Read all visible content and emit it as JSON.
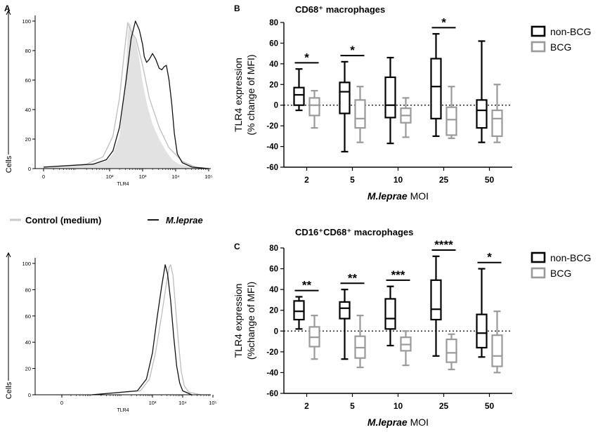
{
  "panel_labels": {
    "a": "A",
    "b": "B",
    "c": "C"
  },
  "histogram_legend": {
    "control": {
      "label": "Control (medium)",
      "color": "#c8c8c8"
    },
    "mleprae": {
      "label": "M.leprae",
      "color": "#1a1a1a"
    }
  },
  "colors": {
    "non_bcg": "#000000",
    "bcg": "#9a9a9a",
    "fill_gray": "#e2e2e2"
  },
  "chart_data": [
    {
      "id": "A_top",
      "type": "histogram",
      "ylabel": "Cells",
      "xlabel": "TLR4",
      "yticks": [
        "0",
        "20",
        "40",
        "60",
        "80",
        "100"
      ],
      "ylim": [
        0,
        100
      ],
      "xticks": [
        "0",
        "10²",
        "10³",
        "10⁴",
        "10⁵"
      ],
      "x_decades": [
        0,
        2,
        3,
        4,
        5
      ],
      "series": [
        {
          "name": "Control (medium)",
          "style": "filled",
          "points": [
            [
              0.0,
              1
            ],
            [
              1.0,
              2
            ],
            [
              1.5,
              3
            ],
            [
              1.9,
              5
            ],
            [
              2.1,
              10
            ],
            [
              2.3,
              22
            ],
            [
              2.4,
              42
            ],
            [
              2.5,
              68
            ],
            [
              2.55,
              92
            ],
            [
              2.6,
              99
            ],
            [
              2.65,
              97
            ],
            [
              2.7,
              92
            ],
            [
              2.8,
              86
            ],
            [
              2.9,
              74
            ],
            [
              3.0,
              58
            ],
            [
              3.15,
              42
            ],
            [
              3.3,
              30
            ],
            [
              3.5,
              20
            ],
            [
              3.7,
              12
            ],
            [
              3.9,
              6
            ],
            [
              4.1,
              3
            ],
            [
              4.5,
              1
            ],
            [
              5.0,
              0
            ]
          ]
        },
        {
          "name": "Control outline",
          "style": "gray-line",
          "points": [
            [
              0.0,
              1
            ],
            [
              1.3,
              3
            ],
            [
              1.8,
              8
            ],
            [
              2.1,
              22
            ],
            [
              2.3,
              48
            ],
            [
              2.45,
              80
            ],
            [
              2.55,
              99
            ],
            [
              2.65,
              93
            ],
            [
              2.8,
              88
            ],
            [
              3.0,
              70
            ],
            [
              3.2,
              48
            ],
            [
              3.5,
              28
            ],
            [
              3.8,
              14
            ],
            [
              4.2,
              5
            ],
            [
              4.6,
              1
            ],
            [
              5.0,
              0
            ]
          ]
        },
        {
          "name": "M.leprae",
          "style": "black-line",
          "points": [
            [
              0.0,
              1
            ],
            [
              1.5,
              3
            ],
            [
              1.9,
              6
            ],
            [
              2.1,
              12
            ],
            [
              2.3,
              28
            ],
            [
              2.5,
              60
            ],
            [
              2.65,
              88
            ],
            [
              2.78,
              100
            ],
            [
              2.9,
              94
            ],
            [
              3.0,
              84
            ],
            [
              3.05,
              76
            ],
            [
              3.12,
              72
            ],
            [
              3.2,
              74
            ],
            [
              3.3,
              78
            ],
            [
              3.4,
              74
            ],
            [
              3.5,
              68
            ],
            [
              3.58,
              67
            ],
            [
              3.65,
              69
            ],
            [
              3.72,
              70
            ],
            [
              3.8,
              60
            ],
            [
              3.88,
              44
            ],
            [
              3.96,
              24
            ],
            [
              4.05,
              10
            ],
            [
              4.2,
              4
            ],
            [
              4.5,
              1
            ],
            [
              5.0,
              0
            ]
          ]
        }
      ]
    },
    {
      "id": "A_bottom",
      "type": "histogram",
      "ylabel": "Cells",
      "xlabel": "TLR4",
      "yticks": [
        "0",
        "20",
        "40",
        "60",
        "80",
        "100"
      ],
      "ylim": [
        0,
        100
      ],
      "xticks": [
        "0",
        "10³",
        "10⁴",
        "10⁵"
      ],
      "x_decades": [
        0,
        3,
        4,
        5
      ],
      "series": [
        {
          "name": "Control (medium)",
          "style": "gray-line",
          "points": [
            [
              1.0,
              0
            ],
            [
              2.6,
              3
            ],
            [
              2.9,
              12
            ],
            [
              3.1,
              32
            ],
            [
              3.3,
              60
            ],
            [
              3.45,
              83
            ],
            [
              3.55,
              97
            ],
            [
              3.6,
              99
            ],
            [
              3.68,
              91
            ],
            [
              3.75,
              70
            ],
            [
              3.85,
              42
            ],
            [
              3.95,
              18
            ],
            [
              4.05,
              7
            ],
            [
              4.2,
              2
            ],
            [
              4.6,
              0
            ]
          ]
        },
        {
          "name": "M.leprae",
          "style": "black-line",
          "points": [
            [
              1.0,
              0
            ],
            [
              2.5,
              3
            ],
            [
              2.8,
              12
            ],
            [
              3.0,
              32
            ],
            [
              3.15,
              58
            ],
            [
              3.3,
              82
            ],
            [
              3.42,
              99
            ],
            [
              3.5,
              92
            ],
            [
              3.6,
              72
            ],
            [
              3.7,
              45
            ],
            [
              3.8,
              22
            ],
            [
              3.9,
              9
            ],
            [
              4.0,
              3
            ],
            [
              4.3,
              0
            ]
          ]
        }
      ]
    },
    {
      "id": "B",
      "type": "boxplot",
      "title": "CD68⁺ macrophages",
      "ylabel_line1": "TLR4 expression",
      "ylabel_line2": "(% change of MFI)",
      "xlabel_italic": "M.leprae",
      "xlabel_rest": " MOI",
      "categories": [
        "2",
        "5",
        "10",
        "25",
        "50"
      ],
      "yticks": [
        "80",
        "60",
        "40",
        "20",
        "0",
        "-20",
        "-40",
        "-60"
      ],
      "ylim": [
        -60,
        80
      ],
      "legend": [
        "non-BCG",
        "BCG"
      ],
      "series": [
        {
          "name": "non-BCG",
          "boxes": [
            {
              "min": -5,
              "q1": 0,
              "median": 10,
              "q3": 17,
              "max": 35
            },
            {
              "min": -45,
              "q1": -8,
              "median": 13,
              "q3": 22,
              "max": 42
            },
            {
              "min": -37,
              "q1": -12,
              "median": 0,
              "q3": 27,
              "max": 46
            },
            {
              "min": -30,
              "q1": -13,
              "median": 18,
              "q3": 45,
              "max": 69
            },
            {
              "min": -36,
              "q1": -22,
              "median": -5,
              "q3": 5,
              "max": 62
            }
          ]
        },
        {
          "name": "BCG",
          "boxes": [
            {
              "min": -22,
              "q1": -10,
              "median": 0,
              "q3": 7,
              "max": 14
            },
            {
              "min": -36,
              "q1": -22,
              "median": -13,
              "q3": 5,
              "max": 18
            },
            {
              "min": -31,
              "q1": -17,
              "median": -10,
              "q3": -3,
              "max": 7
            },
            {
              "min": -32,
              "q1": -29,
              "median": -14,
              "q3": -2,
              "max": 18
            },
            {
              "min": -36,
              "q1": -30,
              "median": -13,
              "q3": -5,
              "max": 20
            }
          ]
        }
      ],
      "significance": [
        "*",
        "*",
        "",
        "*",
        ""
      ]
    },
    {
      "id": "C",
      "type": "boxplot",
      "title": "CD16⁺CD68⁺ macrophages",
      "ylabel_line1": "TLR4 expression",
      "ylabel_line2": "(%change of MFI)",
      "xlabel_italic": "M.leprae",
      "xlabel_rest": " MOI",
      "categories": [
        "2",
        "5",
        "10",
        "25",
        "50"
      ],
      "yticks": [
        "80",
        "60",
        "40",
        "20",
        "0",
        "-20",
        "-40",
        "-60"
      ],
      "ylim": [
        -60,
        80
      ],
      "legend": [
        "non-BCG",
        "BCG"
      ],
      "series": [
        {
          "name": "non-BCG",
          "boxes": [
            {
              "min": 2,
              "q1": 11,
              "median": 19,
              "q3": 29,
              "max": 33
            },
            {
              "min": -27,
              "q1": 12,
              "median": 22,
              "q3": 28,
              "max": 40
            },
            {
              "min": -14,
              "q1": 2,
              "median": 12,
              "q3": 31,
              "max": 43
            },
            {
              "min": -24,
              "q1": 11,
              "median": 21,
              "q3": 49,
              "max": 72
            },
            {
              "min": -25,
              "q1": -16,
              "median": -2,
              "q3": 16,
              "max": 60
            }
          ]
        },
        {
          "name": "BCG",
          "boxes": [
            {
              "min": -27,
              "q1": -15,
              "median": -6,
              "q3": 4,
              "max": 15
            },
            {
              "min": -35,
              "q1": -26,
              "median": -16,
              "q3": -5,
              "max": 15
            },
            {
              "min": -33,
              "q1": -19,
              "median": -13,
              "q3": -6,
              "max": 0
            },
            {
              "min": -37,
              "q1": -30,
              "median": -21,
              "q3": -8,
              "max": -3
            },
            {
              "min": -40,
              "q1": -34,
              "median": -24,
              "q3": -4,
              "max": 19
            }
          ]
        }
      ],
      "significance": [
        "**",
        "**",
        "***",
        "****",
        "*"
      ]
    }
  ]
}
